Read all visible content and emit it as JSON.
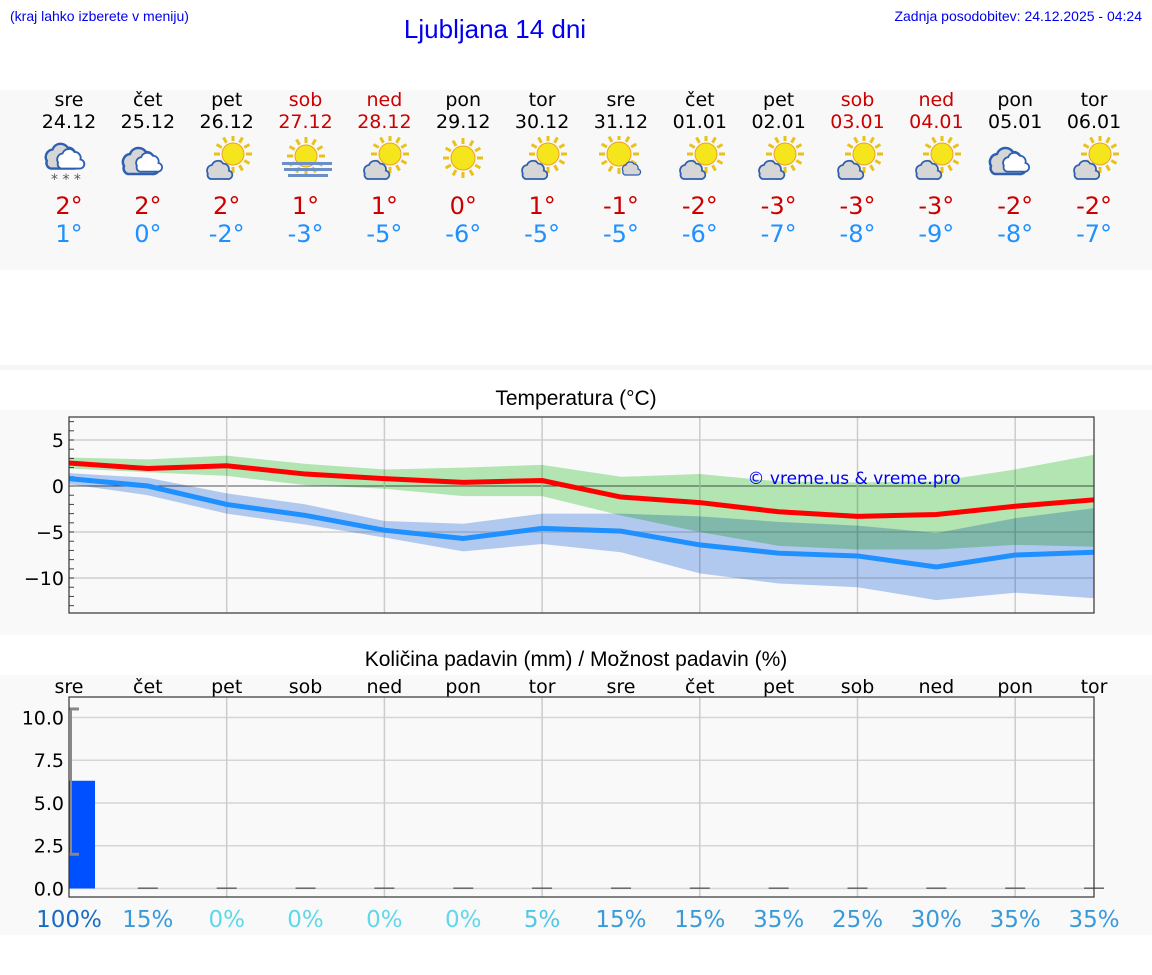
{
  "header": {
    "hint": "(kraj lahko izberete v meniju)",
    "title": "Ljubljana 14 dni",
    "updated": "Zadnja posodobitev: 24.12.2025 - 04:24"
  },
  "colors": {
    "max": "#cc0000",
    "min": "#1e90ff",
    "weekend": "#cc0000",
    "link": "#0000ee",
    "max_band": "#aee9ae",
    "min_band": "#adc6f2",
    "bar": "#0050ff"
  },
  "days": [
    {
      "name": "sre",
      "date": "24.12",
      "icon": "snow-cloud",
      "max": "2°",
      "min": "1°",
      "weekend": false
    },
    {
      "name": "čet",
      "date": "25.12",
      "icon": "cloudy",
      "max": "2°",
      "min": "0°",
      "weekend": false
    },
    {
      "name": "pet",
      "date": "26.12",
      "icon": "partly-cloudy",
      "max": "2°",
      "min": "-2°",
      "weekend": false
    },
    {
      "name": "sob",
      "date": "27.12",
      "icon": "fog-sun",
      "max": "1°",
      "min": "-3°",
      "weekend": true
    },
    {
      "name": "ned",
      "date": "28.12",
      "icon": "partly-cloudy",
      "max": "1°",
      "min": "-5°",
      "weekend": true
    },
    {
      "name": "pon",
      "date": "29.12",
      "icon": "sun",
      "max": "0°",
      "min": "-6°",
      "weekend": false
    },
    {
      "name": "tor",
      "date": "30.12",
      "icon": "partly-cloudy",
      "max": "1°",
      "min": "-5°",
      "weekend": false
    },
    {
      "name": "sre",
      "date": "31.12",
      "icon": "sun-small-cloud",
      "max": "-1°",
      "min": "-5°",
      "weekend": false
    },
    {
      "name": "čet",
      "date": "01.01",
      "icon": "partly-cloudy",
      "max": "-2°",
      "min": "-6°",
      "weekend": false
    },
    {
      "name": "pet",
      "date": "02.01",
      "icon": "partly-cloudy",
      "max": "-3°",
      "min": "-7°",
      "weekend": false
    },
    {
      "name": "sob",
      "date": "03.01",
      "icon": "partly-cloudy",
      "max": "-3°",
      "min": "-8°",
      "weekend": true
    },
    {
      "name": "ned",
      "date": "04.01",
      "icon": "partly-cloudy",
      "max": "-3°",
      "min": "-9°",
      "weekend": true
    },
    {
      "name": "pon",
      "date": "05.01",
      "icon": "cloudy",
      "max": "-2°",
      "min": "-8°",
      "weekend": false
    },
    {
      "name": "tor",
      "date": "06.01",
      "icon": "partly-cloudy",
      "max": "-2°",
      "min": "-7°",
      "weekend": false
    }
  ],
  "chart_data": [
    {
      "type": "line",
      "title": "Temperatura (°C)",
      "ylim": [
        -13.8,
        7.5
      ],
      "yticks": [
        5,
        0,
        -5,
        -10
      ],
      "ytick_labels": [
        "5",
        "0",
        "−5",
        "−10"
      ],
      "grid": true,
      "watermark": "© vreme.us & vreme.pro",
      "x": [
        "24.12",
        "25.12",
        "26.12",
        "27.12",
        "28.12",
        "29.12",
        "30.12",
        "31.12",
        "01.01",
        "02.01",
        "03.01",
        "04.01",
        "05.01",
        "06.01"
      ],
      "series": [
        {
          "role": "max",
          "color": "#ff0000",
          "values": [
            2.5,
            1.9,
            2.2,
            1.3,
            0.8,
            0.4,
            0.6,
            -1.2,
            -1.8,
            -2.8,
            -3.3,
            -3.1,
            -2.2,
            -1.5
          ],
          "band_upper": [
            3.1,
            2.9,
            3.3,
            2.4,
            1.8,
            2.0,
            2.3,
            1.0,
            1.3,
            0.5,
            0.4,
            0.5,
            1.8,
            3.4
          ],
          "band_lower": [
            1.9,
            1.5,
            1.1,
            0.1,
            -0.3,
            -1.1,
            -1.1,
            -3.2,
            -5.0,
            -6.5,
            -6.9,
            -6.9,
            -6.4,
            -6.6
          ]
        },
        {
          "role": "min",
          "color": "#1e90ff",
          "values": [
            0.8,
            0,
            -2,
            -3.2,
            -4.8,
            -5.7,
            -4.6,
            -4.9,
            -6.4,
            -7.3,
            -7.6,
            -8.8,
            -7.5,
            -7.2
          ],
          "band_upper": [
            1.4,
            0.9,
            -0.8,
            -2.0,
            -3.8,
            -4.1,
            -3.0,
            -3.0,
            -3.3,
            -3.9,
            -4.3,
            -5.1,
            -3.5,
            -2.4
          ],
          "band_lower": [
            0.2,
            -1.0,
            -3.0,
            -4.2,
            -5.6,
            -7.1,
            -6.3,
            -7.2,
            -9.5,
            -10.6,
            -11.0,
            -12.4,
            -11.6,
            -12.2
          ]
        }
      ]
    },
    {
      "type": "bar",
      "title": "Količina padavin (mm) / Možnost padavin (%)",
      "ylim": [
        -0.5,
        11.2
      ],
      "yticks": [
        0,
        2.5,
        5,
        7.5,
        10
      ],
      "ytick_labels": [
        "0.0",
        "2.5",
        "5.0",
        "7.5",
        "10.0"
      ],
      "grid": true,
      "categories": [
        "sre",
        "čet",
        "pet",
        "sob",
        "ned",
        "pon",
        "tor",
        "sre",
        "čet",
        "pet",
        "sob",
        "ned",
        "pon",
        "tor"
      ],
      "values": [
        6.3,
        0,
        0,
        0,
        0,
        0,
        0,
        0,
        0,
        0,
        0,
        0,
        0,
        0
      ],
      "error_range": [
        2.0,
        10.5
      ],
      "probability": [
        "100%",
        "15%",
        "0%",
        "0%",
        "0%",
        "0%",
        "5%",
        "15%",
        "15%",
        "35%",
        "25%",
        "30%",
        "35%",
        "35%"
      ],
      "probability_colors": [
        "#1a6cc0",
        "#3a9ad9",
        "#5fd8ea",
        "#5fd8ea",
        "#5fd8ea",
        "#5fd8ea",
        "#4ec8e6",
        "#3a9ad9",
        "#3a9ad9",
        "#3a9ad9",
        "#3a9ad9",
        "#3a9ad9",
        "#3a9ad9",
        "#3a9ad9"
      ]
    }
  ]
}
